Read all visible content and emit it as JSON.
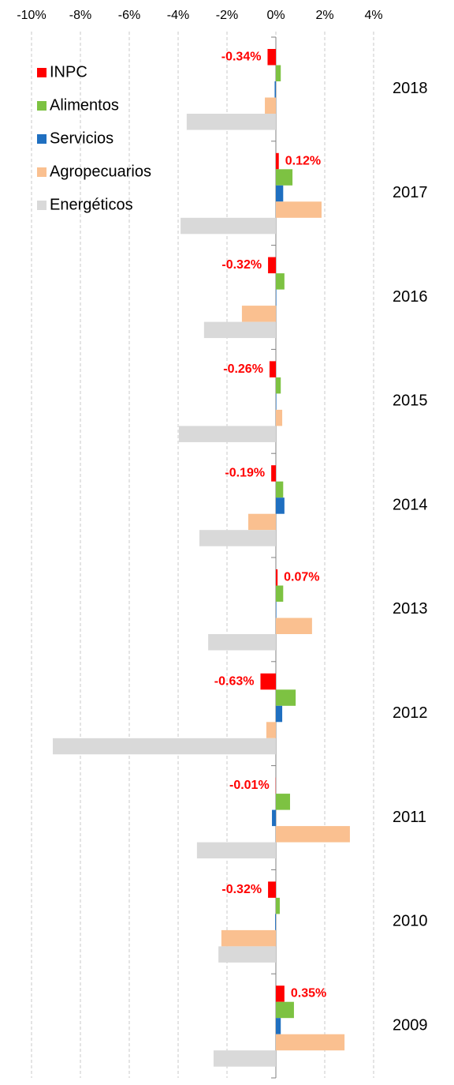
{
  "chart_data": {
    "type": "hbar",
    "categories": [
      "2018",
      "2017",
      "2016",
      "2015",
      "2014",
      "2013",
      "2012",
      "2011",
      "2010",
      "2009"
    ],
    "series": [
      {
        "name": "INPC",
        "color": "#ff0000",
        "values": [
          -0.34,
          0.12,
          -0.32,
          -0.26,
          -0.19,
          0.07,
          -0.63,
          -0.01,
          -0.32,
          0.35
        ],
        "value_labels": [
          "-0.34%",
          "0.12%",
          "-0.32%",
          "-0.26%",
          "-0.19%",
          "0.07%",
          "-0.63%",
          "-0.01%",
          "-0.32%",
          "0.35%"
        ]
      },
      {
        "name": "Alimentos",
        "color": "#7dc242",
        "values": [
          0.2,
          0.68,
          0.35,
          0.2,
          0.3,
          0.3,
          0.81,
          0.58,
          0.16,
          0.74
        ]
      },
      {
        "name": "Servicios",
        "color": "#1f6fc0",
        "values": [
          -0.05,
          0.3,
          0.02,
          0.02,
          0.35,
          0.02,
          0.26,
          -0.16,
          -0.03,
          0.2
        ]
      },
      {
        "name": "Agropecuarios",
        "color": "#fac090",
        "values": [
          -0.45,
          1.87,
          -1.39,
          0.26,
          -1.13,
          1.48,
          -0.39,
          3.03,
          -2.23,
          2.81
        ]
      },
      {
        "name": "Energéticos",
        "color": "#d9d9d9",
        "values": [
          -3.65,
          -3.9,
          -2.94,
          -3.97,
          -3.13,
          -2.77,
          -9.13,
          -3.23,
          -2.35,
          -2.55
        ]
      }
    ],
    "xlim": [
      -10,
      4
    ],
    "xticks": [
      {
        "value": -10,
        "label": "-10%"
      },
      {
        "value": -8,
        "label": "-8%"
      },
      {
        "value": -6,
        "label": "-6%"
      },
      {
        "value": -4,
        "label": "-4%"
      },
      {
        "value": -2,
        "label": "-2%"
      },
      {
        "value": 0,
        "label": "0%"
      },
      {
        "value": 2,
        "label": "2%"
      },
      {
        "value": 4,
        "label": "4%"
      }
    ],
    "grid": true,
    "legend": "top-left"
  }
}
